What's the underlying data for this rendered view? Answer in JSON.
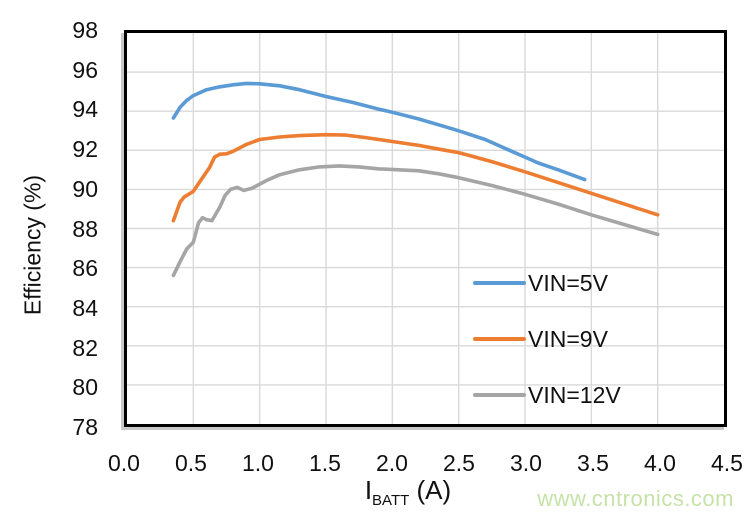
{
  "watermark": "www.cntronics.com",
  "chart_data": {
    "type": "line",
    "title": "",
    "xlabel_main": "I",
    "xlabel_sub": "BATT",
    "xlabel_unit": " (A)",
    "ylabel": "Efficiency (%)",
    "xlim": [
      0,
      4.5
    ],
    "ylim": [
      78,
      98
    ],
    "x_tick_step": 0.5,
    "y_tick_step": 2,
    "x_ticks": [
      "0.0",
      "0.5",
      "1.0",
      "1.5",
      "2.0",
      "2.5",
      "3.0",
      "3.5",
      "4.0",
      "4.5"
    ],
    "y_ticks": [
      "98",
      "96",
      "94",
      "92",
      "90",
      "88",
      "86",
      "84",
      "82",
      "80",
      "78"
    ],
    "grid": true,
    "gridline_color": "#d9d9d9",
    "border_color": "#000000",
    "legend_position": "inside-right",
    "series": [
      {
        "name": "VIN=5V",
        "color": "#5B9BD5",
        "points": [
          [
            0.35,
            93.65
          ],
          [
            0.4,
            94.2
          ],
          [
            0.45,
            94.55
          ],
          [
            0.5,
            94.8
          ],
          [
            0.6,
            95.1
          ],
          [
            0.7,
            95.25
          ],
          [
            0.8,
            95.35
          ],
          [
            0.9,
            95.42
          ],
          [
            1.0,
            95.4
          ],
          [
            1.15,
            95.3
          ],
          [
            1.3,
            95.1
          ],
          [
            1.5,
            94.75
          ],
          [
            1.7,
            94.45
          ],
          [
            1.9,
            94.1
          ],
          [
            2.0,
            93.95
          ],
          [
            2.2,
            93.6
          ],
          [
            2.4,
            93.2
          ],
          [
            2.5,
            93.0
          ],
          [
            2.7,
            92.55
          ],
          [
            2.9,
            91.95
          ],
          [
            3.0,
            91.65
          ],
          [
            3.1,
            91.35
          ],
          [
            3.25,
            91.0
          ],
          [
            3.35,
            90.75
          ],
          [
            3.45,
            90.5
          ]
        ]
      },
      {
        "name": "VIN=9V",
        "color": "#ED7D31",
        "points": [
          [
            0.35,
            88.4
          ],
          [
            0.4,
            89.35
          ],
          [
            0.43,
            89.6
          ],
          [
            0.5,
            89.9
          ],
          [
            0.54,
            90.3
          ],
          [
            0.58,
            90.7
          ],
          [
            0.62,
            91.1
          ],
          [
            0.66,
            91.65
          ],
          [
            0.7,
            91.8
          ],
          [
            0.75,
            91.82
          ],
          [
            0.8,
            91.95
          ],
          [
            0.9,
            92.3
          ],
          [
            1.0,
            92.55
          ],
          [
            1.15,
            92.68
          ],
          [
            1.3,
            92.75
          ],
          [
            1.5,
            92.8
          ],
          [
            1.65,
            92.78
          ],
          [
            1.8,
            92.65
          ],
          [
            2.0,
            92.45
          ],
          [
            2.2,
            92.25
          ],
          [
            2.4,
            92.0
          ],
          [
            2.5,
            91.88
          ],
          [
            2.75,
            91.42
          ],
          [
            3.0,
            90.9
          ],
          [
            3.25,
            90.35
          ],
          [
            3.5,
            89.8
          ],
          [
            3.75,
            89.25
          ],
          [
            4.0,
            88.7
          ]
        ]
      },
      {
        "name": "VIN=12V",
        "color": "#A5A5A5",
        "points": [
          [
            0.35,
            85.6
          ],
          [
            0.4,
            86.3
          ],
          [
            0.45,
            86.95
          ],
          [
            0.5,
            87.3
          ],
          [
            0.54,
            88.3
          ],
          [
            0.57,
            88.55
          ],
          [
            0.6,
            88.45
          ],
          [
            0.64,
            88.4
          ],
          [
            0.7,
            89.1
          ],
          [
            0.74,
            89.7
          ],
          [
            0.78,
            90.0
          ],
          [
            0.83,
            90.1
          ],
          [
            0.88,
            89.95
          ],
          [
            0.94,
            90.05
          ],
          [
            1.05,
            90.45
          ],
          [
            1.15,
            90.75
          ],
          [
            1.3,
            91.0
          ],
          [
            1.45,
            91.15
          ],
          [
            1.6,
            91.2
          ],
          [
            1.75,
            91.15
          ],
          [
            1.9,
            91.05
          ],
          [
            2.05,
            91.0
          ],
          [
            2.2,
            90.95
          ],
          [
            2.35,
            90.8
          ],
          [
            2.5,
            90.6
          ],
          [
            2.75,
            90.2
          ],
          [
            3.0,
            89.75
          ],
          [
            3.25,
            89.25
          ],
          [
            3.5,
            88.7
          ],
          [
            3.75,
            88.2
          ],
          [
            4.0,
            87.7
          ]
        ]
      }
    ]
  }
}
